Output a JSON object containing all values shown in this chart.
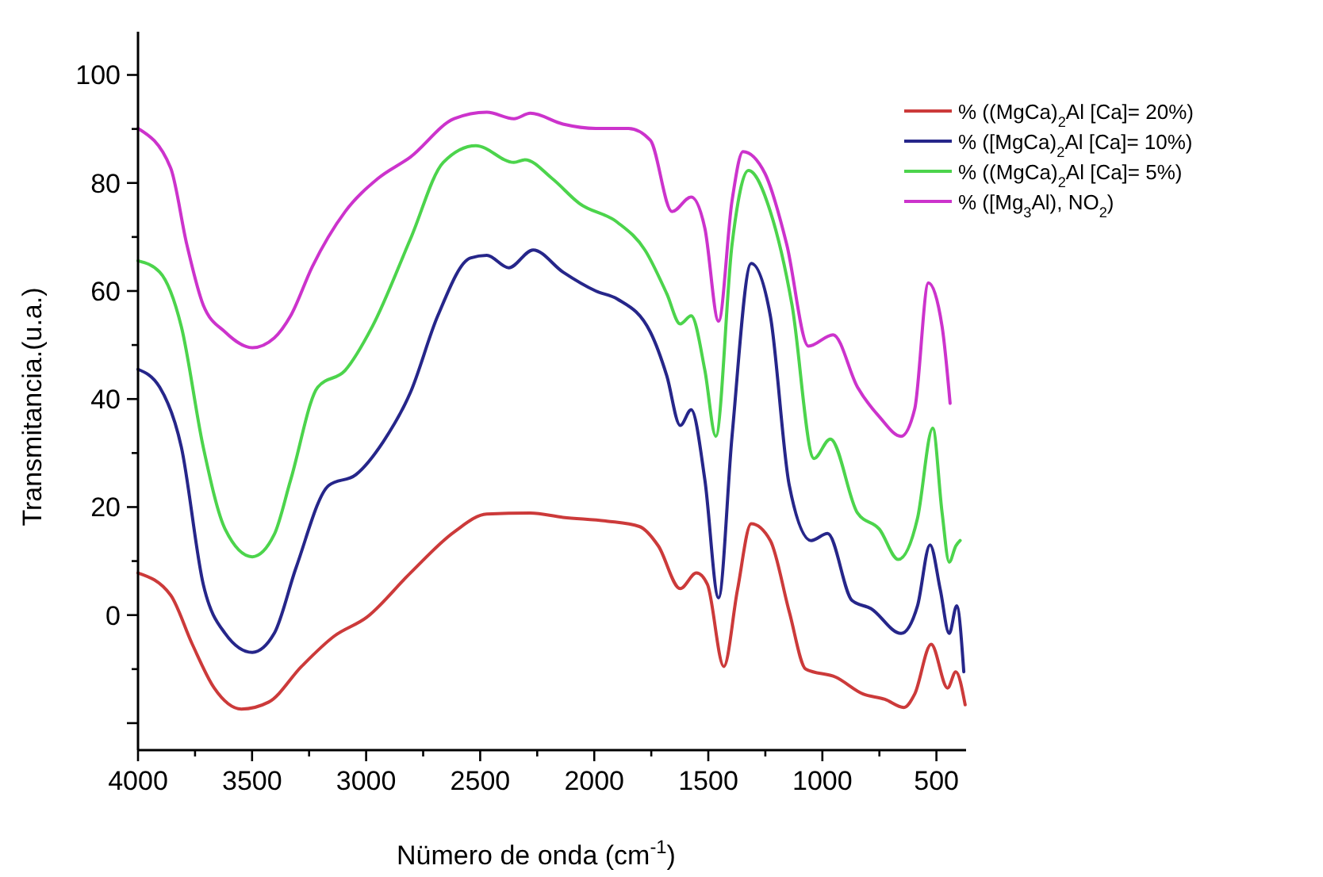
{
  "chart_data": {
    "type": "line",
    "xlabel": "Nümero de onda (cm$^{-1}$)",
    "ylabel": "Transmitancia.(u.a.)",
    "xlim": [
      4000,
      370
    ],
    "ylim": [
      -25,
      108
    ],
    "xticks": [
      4000,
      {
        "value": 3750,
        "label": null
      },
      3500,
      {
        "value": 3250,
        "label": null
      },
      3000,
      {
        "value": 2750,
        "label": null
      },
      2500,
      {
        "value": 2250,
        "label": null
      },
      2000,
      {
        "value": 1750,
        "label": null
      },
      1500,
      {
        "value": 1250,
        "label": null
      },
      1000,
      {
        "value": 750,
        "label": null
      },
      500
    ],
    "yticks": [
      {
        "value": -20,
        "label": null
      },
      {
        "value": -10,
        "label": null
      },
      0,
      {
        "value": 10,
        "label": null
      },
      20,
      {
        "value": 30,
        "label": null
      },
      40,
      {
        "value": 50,
        "label": null
      },
      60,
      {
        "value": 70,
        "label": null
      },
      80,
      {
        "value": 90,
        "label": null
      },
      100
    ],
    "legend": "top right",
    "series": [
      {
        "name": "% ((MgCa)$_{2}$Al [Ca]= 20%)",
        "color": "#cc3a3a",
        "x": [
          4000,
          3857,
          3762,
          3666,
          3547,
          3427,
          3283,
          3140,
          2997,
          2806,
          2614,
          2471,
          2280,
          2137,
          1945,
          1802,
          1719,
          1623,
          1552,
          1504,
          1432,
          1372,
          1312,
          1228,
          1145,
          1073,
          941,
          822,
          726,
          643,
          595,
          523,
          451,
          415,
          374
        ],
        "values": [
          7.8,
          3.7,
          -5.4,
          -13.5,
          -17.4,
          -16.1,
          -9.5,
          -3.9,
          -0.4,
          7.8,
          15.4,
          18.7,
          18.9,
          18.1,
          17.4,
          16.4,
          12.8,
          4.9,
          7.8,
          5.7,
          -9.5,
          4.7,
          16.9,
          13.8,
          0.6,
          -10,
          -11.5,
          -14.6,
          -15.6,
          -17.1,
          -14.6,
          -5.4,
          -13.5,
          -10.5,
          -16.6
        ]
      },
      {
        "name": "% ([MgCa)$_{2}$Al [Ca]= 10%)",
        "color": "#26268a",
        "x": [
          4000,
          3905,
          3810,
          3714,
          3618,
          3499,
          3403,
          3307,
          3164,
          3045,
          2925,
          2806,
          2686,
          2543,
          2471,
          2375,
          2268,
          2137,
          1993,
          1898,
          1754,
          1682,
          1623,
          1575,
          1515,
          1455,
          1396,
          1312,
          1228,
          1145,
          1049,
          977,
          870,
          787,
          655,
          583,
          528,
          483,
          444,
          411,
          380
        ],
        "values": [
          45.5,
          42.2,
          31.1,
          5.7,
          -3.4,
          -6.9,
          -3.4,
          8.8,
          24,
          26,
          32.1,
          41.2,
          55.4,
          66.1,
          66.6,
          64.3,
          67.6,
          63.5,
          60,
          58.5,
          52.4,
          44.3,
          35.1,
          38,
          25,
          3.2,
          33.1,
          65.1,
          55.4,
          24,
          13.8,
          15.1,
          2.7,
          1.2,
          -3.4,
          1.7,
          13,
          4.7,
          -3.4,
          1.7,
          -10.5
        ]
      },
      {
        "name": "% ((MgCa)$_{2}$Al [Ca]= 5%)",
        "color": "#4cd44c",
        "x": [
          4000,
          3905,
          3810,
          3714,
          3618,
          3499,
          3403,
          3331,
          3212,
          3092,
          2973,
          2806,
          2662,
          2519,
          2352,
          2304,
          2184,
          2065,
          1898,
          1778,
          1682,
          1623,
          1575,
          1515,
          1467,
          1396,
          1324,
          1228,
          1133,
          1037,
          965,
          846,
          750,
          667,
          583,
          516,
          475,
          444,
          415,
          396
        ],
        "values": [
          65.6,
          63.5,
          53.4,
          31.1,
          15.9,
          10.8,
          14.9,
          25,
          42.2,
          45.3,
          53.4,
          69.6,
          83.8,
          86.9,
          83.8,
          84.3,
          80.8,
          76.2,
          72.7,
          67.6,
          59.5,
          53.9,
          55.4,
          45.3,
          33.1,
          68.6,
          82.3,
          74.7,
          57.4,
          29,
          32.6,
          18.9,
          15.9,
          10.3,
          17.9,
          34.6,
          18.9,
          9.8,
          12.8,
          13.8
        ]
      },
      {
        "name": "% ([Mg$_{3}$Al), NO$_{2}$)",
        "color": "#cc33cc",
        "x": [
          4000,
          3857,
          3786,
          3714,
          3618,
          3499,
          3403,
          3331,
          3236,
          3092,
          2949,
          2806,
          2614,
          2471,
          2352,
          2280,
          2137,
          1993,
          1850,
          1754,
          1659,
          1575,
          1515,
          1455,
          1396,
          1348,
          1252,
          1156,
          1061,
          953,
          846,
          750,
          655,
          595,
          535,
          475,
          440
        ],
        "values": [
          90.1,
          82.8,
          68.6,
          57.4,
          52.4,
          49.5,
          51.3,
          55.4,
          64.5,
          74.7,
          80.8,
          84.8,
          91.9,
          93.1,
          91.9,
          92.9,
          90.9,
          90.1,
          90.1,
          87.9,
          74.7,
          77.4,
          71.6,
          54.4,
          76.7,
          85.8,
          81.8,
          68.6,
          49.8,
          51.9,
          42.2,
          36.7,
          33.1,
          38.2,
          61.5,
          53.4,
          39.2
        ]
      }
    ]
  }
}
